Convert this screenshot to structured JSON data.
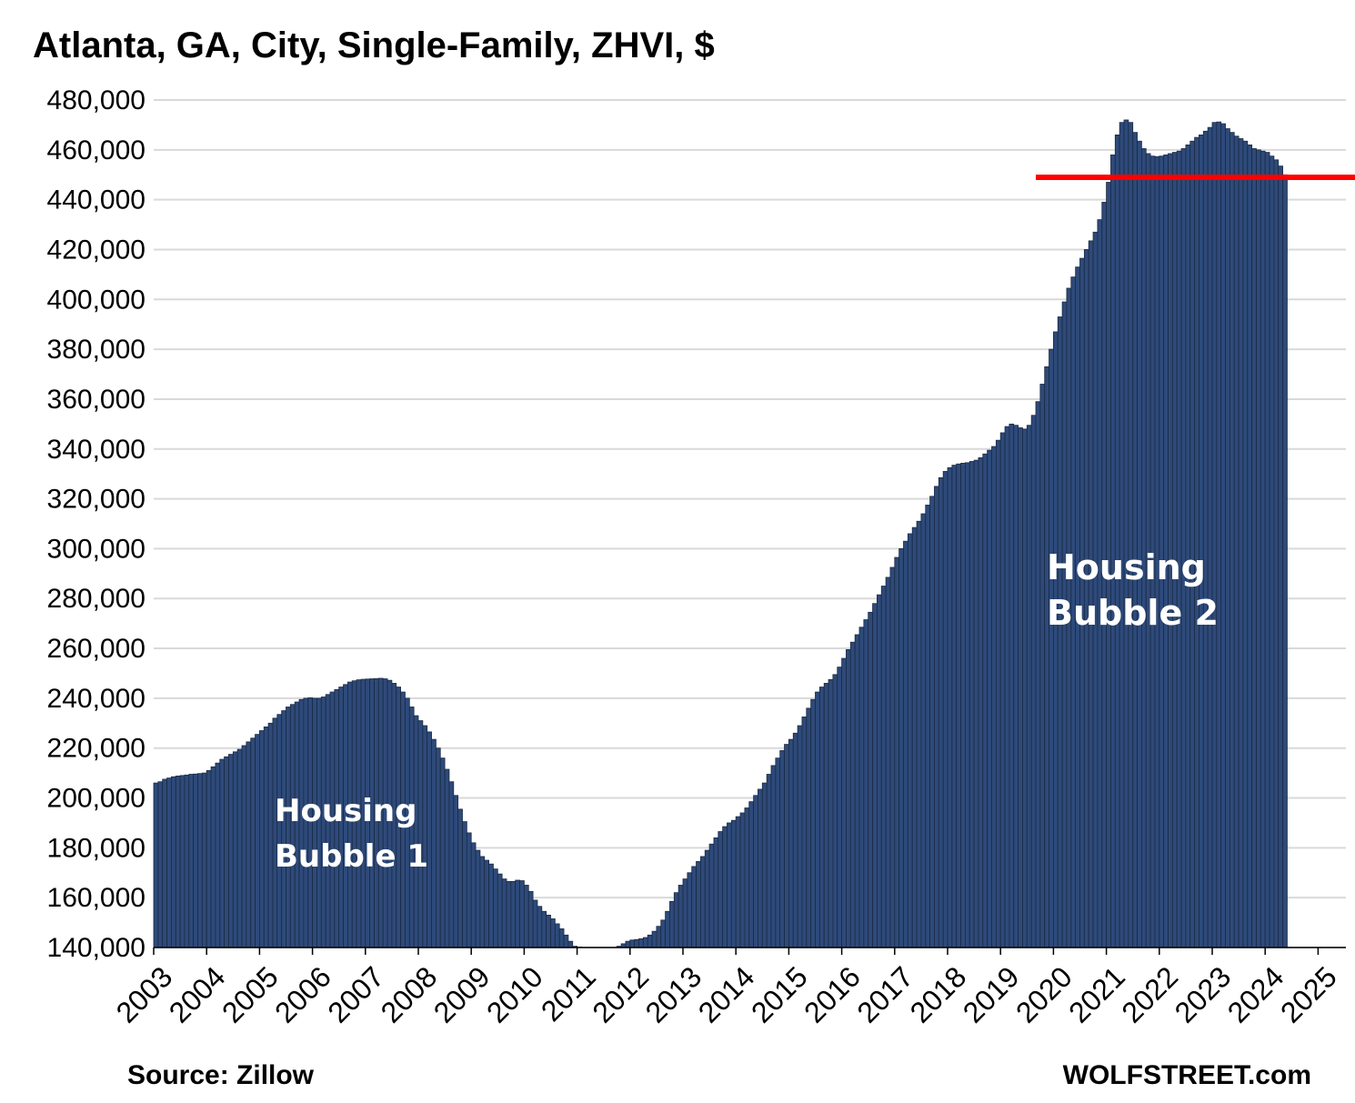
{
  "chart_data": {
    "type": "bar",
    "title": "Atlanta, GA, City, Single-Family, ZHVI, $",
    "xlabel": "",
    "ylabel": "",
    "ylim": [
      140000,
      480000
    ],
    "y_ticks": [
      "140,000",
      "160,000",
      "180,000",
      "200,000",
      "220,000",
      "240,000",
      "260,000",
      "280,000",
      "300,000",
      "320,000",
      "340,000",
      "360,000",
      "380,000",
      "400,000",
      "420,000",
      "440,000",
      "460,000",
      "480,000"
    ],
    "x_ticks": [
      "2003",
      "2004",
      "2005",
      "2006",
      "2007",
      "2008",
      "2009",
      "2010",
      "2011",
      "2012",
      "2013",
      "2014",
      "2015",
      "2016",
      "2017",
      "2018",
      "2019",
      "2020",
      "2021",
      "2022",
      "2023",
      "2024",
      "2025"
    ],
    "grid": true,
    "bar_color": "#2E4A7A",
    "reference_line": {
      "value": 449000,
      "from": "2019-09",
      "color": "#FF0000"
    },
    "series": [
      {
        "values": [
          206000,
          206500,
          207500,
          208000,
          208500,
          208800,
          209000,
          209200,
          209500,
          209600,
          209800,
          210000,
          211000,
          212500,
          214000,
          215500,
          216500,
          217500,
          218500,
          219500,
          221000,
          222500,
          224000,
          225500,
          227000,
          228500,
          230000,
          232000,
          233500,
          235000,
          236500,
          237500,
          238500,
          239500,
          240000,
          240200,
          240000,
          240000,
          240500,
          241500,
          242500,
          243500,
          244500,
          245500,
          246500,
          247000,
          247400,
          247600,
          247700,
          247800,
          247900,
          248000,
          247800,
          247200,
          246000,
          244500,
          242500,
          240000,
          236500,
          233000,
          231000,
          229000,
          226500,
          223500,
          220000,
          216000,
          211500,
          206500,
          201000,
          195500,
          190500,
          186000,
          182000,
          179000,
          176500,
          175000,
          173500,
          171500,
          169500,
          167500,
          166500,
          166500,
          167000,
          166800,
          165000,
          162500,
          159000,
          156500,
          154500,
          153000,
          151500,
          149500,
          147500,
          145000,
          142500,
          140500,
          140200,
          140000,
          139900,
          139800,
          139800,
          139900,
          139900,
          139800,
          139900,
          140500,
          141500,
          142500,
          143000,
          143200,
          143500,
          144000,
          145000,
          146500,
          148500,
          151000,
          154500,
          158500,
          162000,
          165000,
          167500,
          170000,
          172500,
          174500,
          176500,
          179000,
          181500,
          184000,
          186500,
          188500,
          190000,
          191000,
          192500,
          194000,
          196000,
          198500,
          201000,
          203500,
          206000,
          209500,
          213000,
          216000,
          219000,
          221500,
          223500,
          226000,
          229000,
          232500,
          236000,
          239500,
          242500,
          244500,
          246000,
          247500,
          249500,
          252500,
          256000,
          259500,
          262500,
          265500,
          268500,
          271500,
          274500,
          278000,
          281500,
          285000,
          288500,
          292500,
          296500,
          300000,
          303000,
          306000,
          308500,
          311000,
          314000,
          317500,
          321000,
          325000,
          328500,
          331000,
          332500,
          333500,
          334000,
          334300,
          334500,
          335000,
          335500,
          336500,
          338000,
          339500,
          341000,
          343500,
          346500,
          349000,
          350000,
          349500,
          348500,
          348000,
          349500,
          353500,
          359000,
          366000,
          373000,
          380000,
          387000,
          393000,
          399000,
          404500,
          409000,
          413000,
          416500,
          420000,
          423500,
          427000,
          432000,
          439000,
          447000,
          458000,
          466000,
          471000,
          472000,
          471000,
          467000,
          463500,
          460500,
          458500,
          457500,
          457300,
          457500,
          458000,
          458500,
          459000,
          459500,
          460500,
          462000,
          463500,
          465000,
          466000,
          467500,
          469000,
          471000,
          471200,
          470500,
          468500,
          467000,
          465500,
          464500,
          463500,
          462000,
          460500,
          460000,
          459500,
          459000,
          457500,
          456000,
          453500,
          450000
        ]
      }
    ],
    "annotations": [
      {
        "lines": [
          "Housing",
          "Bubble 1"
        ]
      },
      {
        "lines": [
          "Housing",
          "Bubble 2"
        ]
      }
    ]
  },
  "footer": {
    "source": "Source: Zillow",
    "brand": "WOLFSTREET.com"
  }
}
